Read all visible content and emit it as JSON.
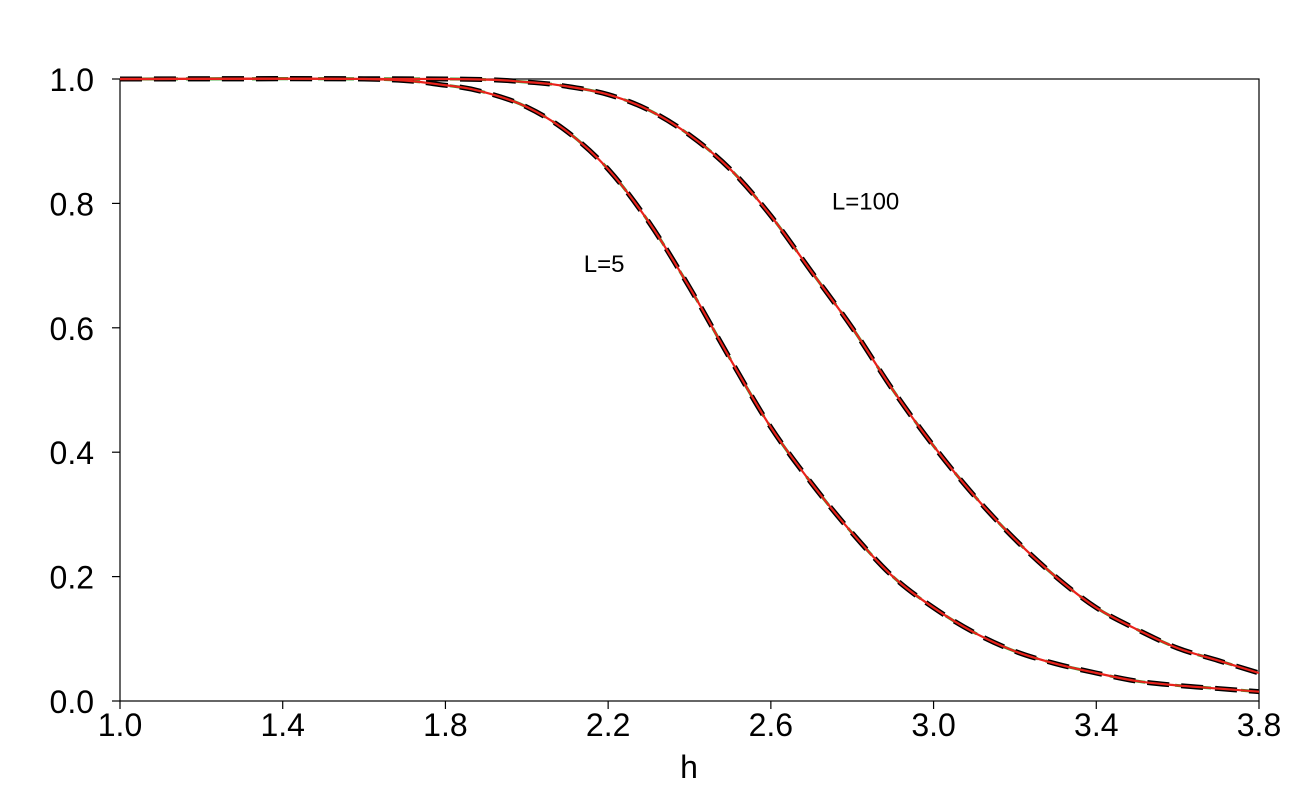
{
  "chart_data": {
    "type": "line",
    "title": "",
    "xlabel": "h",
    "ylabel": "",
    "xlim": [
      1.0,
      3.8
    ],
    "ylim": [
      0.0,
      1.0
    ],
    "grid": false,
    "xticks": [
      {
        "value": 1.0,
        "label": "1.0"
      },
      {
        "value": 1.4,
        "label": "1.4"
      },
      {
        "value": 1.8,
        "label": "1.8"
      },
      {
        "value": 2.2,
        "label": "2.2"
      },
      {
        "value": 2.6,
        "label": "2.6"
      },
      {
        "value": 3.0,
        "label": "3.0"
      },
      {
        "value": 3.4,
        "label": "3.4"
      },
      {
        "value": 3.8,
        "label": "3.8"
      }
    ],
    "yticks": [
      {
        "value": 0.0,
        "label": "0.0"
      },
      {
        "value": 0.2,
        "label": "0.2"
      },
      {
        "value": 0.4,
        "label": "0.4"
      },
      {
        "value": 0.6,
        "label": "0.6"
      },
      {
        "value": 0.8,
        "label": "0.8"
      },
      {
        "value": 1.0,
        "label": "1.0"
      }
    ],
    "annotations": [
      {
        "text": "L=5",
        "x": 2.14,
        "y": 0.69
      },
      {
        "text": "L=100",
        "x": 2.75,
        "y": 0.79
      }
    ],
    "series": [
      {
        "style": "green-dashed",
        "color": "#2ca02c",
        "x": [
          1.0,
          1.6,
          1.8,
          1.9,
          2.0,
          2.1,
          2.2,
          2.3,
          2.4,
          2.5,
          2.6,
          2.7,
          2.8,
          2.9,
          3.0,
          3.1,
          3.2,
          3.3,
          3.4,
          3.5,
          3.6,
          3.7,
          3.8
        ],
        "y": [
          1.0,
          1.0,
          0.99,
          0.978,
          0.955,
          0.915,
          0.855,
          0.77,
          0.665,
          0.55,
          0.44,
          0.35,
          0.27,
          0.2,
          0.15,
          0.11,
          0.08,
          0.06,
          0.045,
          0.032,
          0.025,
          0.02,
          0.015
        ]
      },
      {
        "style": "black-dashed",
        "color": "#000000",
        "x": [
          1.0,
          1.6,
          1.8,
          1.9,
          2.0,
          2.1,
          2.2,
          2.3,
          2.4,
          2.5,
          2.6,
          2.7,
          2.8,
          2.9,
          3.0,
          3.1,
          3.2,
          3.3,
          3.4,
          3.5,
          3.6,
          3.7,
          3.8
        ],
        "y": [
          1.0,
          1.0,
          0.99,
          0.978,
          0.955,
          0.915,
          0.855,
          0.77,
          0.665,
          0.55,
          0.44,
          0.35,
          0.27,
          0.2,
          0.15,
          0.11,
          0.08,
          0.06,
          0.045,
          0.032,
          0.025,
          0.02,
          0.015
        ]
      },
      {
        "style": "red-solid",
        "color": "#e8221b",
        "x": [
          1.0,
          1.6,
          1.8,
          1.9,
          2.0,
          2.1,
          2.2,
          2.3,
          2.4,
          2.5,
          2.6,
          2.7,
          2.8,
          2.9,
          3.0,
          3.1,
          3.2,
          3.3,
          3.4,
          3.5,
          3.6,
          3.7,
          3.8
        ],
        "y": [
          1.0,
          1.0,
          0.99,
          0.978,
          0.955,
          0.915,
          0.855,
          0.77,
          0.665,
          0.55,
          0.44,
          0.35,
          0.27,
          0.2,
          0.15,
          0.11,
          0.08,
          0.06,
          0.045,
          0.032,
          0.025,
          0.02,
          0.015
        ]
      },
      {
        "style": "green-dashed",
        "color": "#2ca02c",
        "x": [
          1.0,
          1.8,
          2.0,
          2.1,
          2.2,
          2.3,
          2.4,
          2.5,
          2.6,
          2.7,
          2.8,
          2.9,
          3.0,
          3.1,
          3.2,
          3.3,
          3.4,
          3.5,
          3.6,
          3.7,
          3.8
        ],
        "y": [
          1.0,
          1.0,
          0.995,
          0.988,
          0.975,
          0.95,
          0.91,
          0.855,
          0.78,
          0.69,
          0.6,
          0.5,
          0.41,
          0.33,
          0.26,
          0.2,
          0.15,
          0.115,
          0.085,
          0.065,
          0.045
        ]
      },
      {
        "style": "black-dashed",
        "color": "#000000",
        "x": [
          1.0,
          1.8,
          2.0,
          2.1,
          2.2,
          2.3,
          2.4,
          2.5,
          2.6,
          2.7,
          2.8,
          2.9,
          3.0,
          3.1,
          3.2,
          3.3,
          3.4,
          3.5,
          3.6,
          3.7,
          3.8
        ],
        "y": [
          1.0,
          1.0,
          0.995,
          0.988,
          0.975,
          0.95,
          0.91,
          0.855,
          0.78,
          0.69,
          0.6,
          0.5,
          0.41,
          0.33,
          0.26,
          0.2,
          0.15,
          0.115,
          0.085,
          0.065,
          0.045
        ]
      },
      {
        "style": "red-solid",
        "color": "#e8221b",
        "x": [
          1.0,
          1.8,
          2.0,
          2.1,
          2.2,
          2.3,
          2.4,
          2.5,
          2.6,
          2.7,
          2.8,
          2.9,
          3.0,
          3.1,
          3.2,
          3.3,
          3.4,
          3.5,
          3.6,
          3.7,
          3.8
        ],
        "y": [
          1.0,
          1.0,
          0.995,
          0.988,
          0.975,
          0.95,
          0.91,
          0.855,
          0.78,
          0.69,
          0.6,
          0.5,
          0.41,
          0.33,
          0.26,
          0.2,
          0.15,
          0.115,
          0.085,
          0.065,
          0.045
        ]
      }
    ]
  }
}
